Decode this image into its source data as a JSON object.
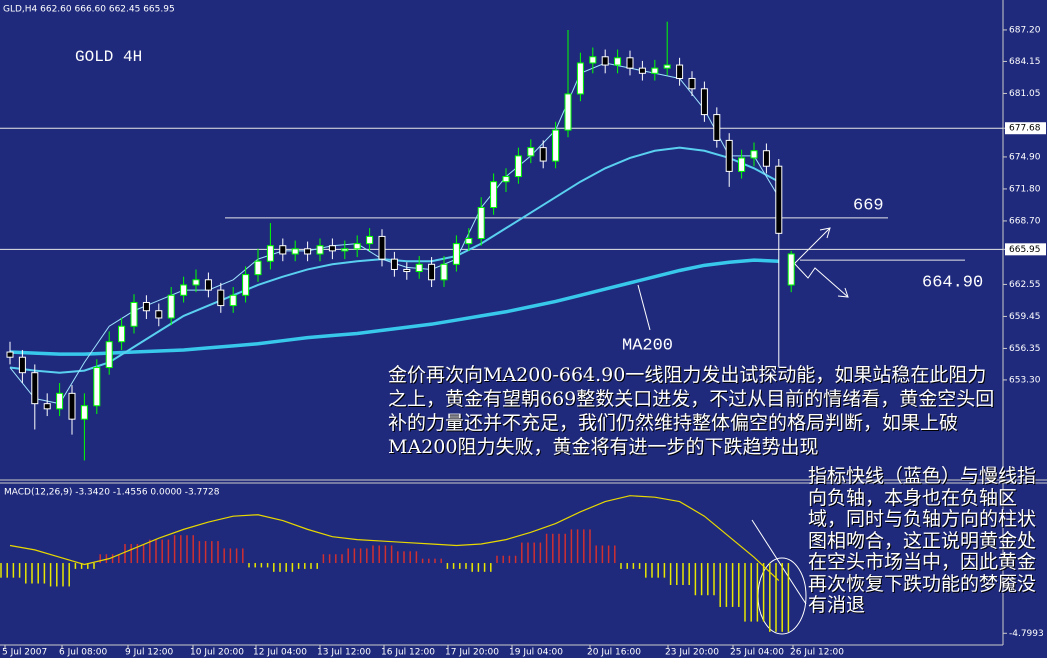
{
  "header": "GLD,H4  662.60 666.60 662.45 665.95",
  "time_labels": [
    "5 Jul 2007",
    "6 Jul 08:00",
    "9 Jul 12:00",
    "10 Jul 20:00",
    "12 Jul 04:00",
    "13 Jul 12:00",
    "16 Jul 12:00",
    "17 Jul 20:00",
    "19 Jul 04:00",
    "20 Jul 16:00",
    "23 Jul 20:00",
    "25 Jul 04:00",
    "26 Jul 12:00"
  ],
  "notes": [
    "金价再次向MA200-664.90一线阻力发出试探动能，如果站稳在此阻力之上，黄金有望朝669整数关口进发，不过从目前的情绪看，黄金空头回补的力量还并不充足，我们仍然维持整体偏空的格局判断，如果上破MA200阻力失败，黄金将有进一步的下跌趋势出现",
    "指标快线（蓝色）与慢线指向负轴，本身也在负轴区域，同时与负轴方向的柱状图相吻合，这正说明黄金处在空头市场当中，因此黄金再次恢复下跌功能的梦魇没有消退"
  ],
  "chart_data": [
    {
      "type": "candlestick",
      "title": "GOLD 4H",
      "ylim": [
        643.8,
        690.1
      ],
      "yticks": [
        {
          "value": 687.2,
          "label": "687.20"
        },
        {
          "value": 684.15,
          "label": "684.15"
        },
        {
          "value": 681.05,
          "label": "681.05"
        },
        {
          "value": 677.68,
          "label": "677.68"
        },
        {
          "value": 674.9,
          "label": "674.90"
        },
        {
          "value": 671.8,
          "label": "671.80"
        },
        {
          "value": 668.7,
          "label": "668.70"
        },
        {
          "value": 665.95,
          "label": "665.95"
        },
        {
          "value": 662.55,
          "label": "662.55"
        },
        {
          "value": 659.45,
          "label": "659.45"
        },
        {
          "value": 656.35,
          "label": "656.35"
        },
        {
          "value": 653.3,
          "label": "653.30"
        }
      ],
      "reference_lines": [
        677.68,
        665.95
      ],
      "levels": [
        {
          "value": 669,
          "label": "669"
        },
        {
          "value": 664.9,
          "label": "664.90"
        }
      ],
      "ma_label": "MA200",
      "up_color": "#00ff00",
      "down_color": "#ffffff",
      "ohlc": [
        [
          656.0,
          657.0,
          654.8,
          655.5
        ],
        [
          655.5,
          656.2,
          653.0,
          654.0
        ],
        [
          654.0,
          654.8,
          648.5,
          651.0
        ],
        [
          651.0,
          652.0,
          649.8,
          650.5
        ],
        [
          650.5,
          653.0,
          649.8,
          652.0
        ],
        [
          652.0,
          652.8,
          648.0,
          649.5
        ],
        [
          649.5,
          652.0,
          645.5,
          650.8
        ],
        [
          650.8,
          655.3,
          650.0,
          654.5
        ],
        [
          654.5,
          658.0,
          653.8,
          657.0
        ],
        [
          657.0,
          659.3,
          656.2,
          658.5
        ],
        [
          658.5,
          661.6,
          657.8,
          660.8
        ],
        [
          660.8,
          661.5,
          659.2,
          660.0
        ],
        [
          660.0,
          660.7,
          658.5,
          659.3
        ],
        [
          659.3,
          662.3,
          658.6,
          661.5
        ],
        [
          661.5,
          663.3,
          660.8,
          662.5
        ],
        [
          662.5,
          664.0,
          661.8,
          663.0
        ],
        [
          663.0,
          663.7,
          661.3,
          662.0
        ],
        [
          662.0,
          662.7,
          659.8,
          660.5
        ],
        [
          660.5,
          662.3,
          659.8,
          661.5
        ],
        [
          661.5,
          664.3,
          660.8,
          663.5
        ],
        [
          663.5,
          666.0,
          662.8,
          664.8
        ],
        [
          664.8,
          668.5,
          664.0,
          666.3
        ],
        [
          666.3,
          667.0,
          664.8,
          665.5
        ],
        [
          665.5,
          666.8,
          664.8,
          666.0
        ],
        [
          666.0,
          666.7,
          664.8,
          665.5
        ],
        [
          665.5,
          667.0,
          664.8,
          666.3
        ],
        [
          666.3,
          667.0,
          665.0,
          665.8
        ],
        [
          665.8,
          666.8,
          665.0,
          666.0
        ],
        [
          666.0,
          667.3,
          665.2,
          666.5
        ],
        [
          666.5,
          668.0,
          665.8,
          667.2
        ],
        [
          667.2,
          667.9,
          664.3,
          665.0
        ],
        [
          665.0,
          665.7,
          663.3,
          664.0
        ],
        [
          664.0,
          664.7,
          663.0,
          663.8
        ],
        [
          663.8,
          665.3,
          663.1,
          664.5
        ],
        [
          664.5,
          665.2,
          662.3,
          663.0
        ],
        [
          663.0,
          665.3,
          662.3,
          664.5
        ],
        [
          664.5,
          667.3,
          663.8,
          666.5
        ],
        [
          666.5,
          668.0,
          665.8,
          667.0
        ],
        [
          667.0,
          671.0,
          666.3,
          670.0
        ],
        [
          670.0,
          673.3,
          669.3,
          672.5
        ],
        [
          672.5,
          673.8,
          671.5,
          673.0
        ],
        [
          673.0,
          675.8,
          672.3,
          675.0
        ],
        [
          675.0,
          676.6,
          674.3,
          675.8
        ],
        [
          675.8,
          676.5,
          673.8,
          674.5
        ],
        [
          674.5,
          678.3,
          673.8,
          677.5
        ],
        [
          677.5,
          687.2,
          676.8,
          681.0
        ],
        [
          681.0,
          685.0,
          680.3,
          684.0
        ],
        [
          684.0,
          685.5,
          683.0,
          684.6
        ],
        [
          684.6,
          685.3,
          683.0,
          683.8
        ],
        [
          683.8,
          685.3,
          683.0,
          684.5
        ],
        [
          684.5,
          685.2,
          682.8,
          683.5
        ],
        [
          683.5,
          684.2,
          682.3,
          683.0
        ],
        [
          683.0,
          684.3,
          682.3,
          683.5
        ],
        [
          683.5,
          688.0,
          682.8,
          683.8
        ],
        [
          683.8,
          684.5,
          681.8,
          682.5
        ],
        [
          682.5,
          683.2,
          680.8,
          681.5
        ],
        [
          681.5,
          682.2,
          678.3,
          679.0
        ],
        [
          679.0,
          679.7,
          675.8,
          676.5
        ],
        [
          676.5,
          677.2,
          672.0,
          673.5
        ],
        [
          673.5,
          675.6,
          672.8,
          674.8
        ],
        [
          674.8,
          676.3,
          674.0,
          675.5
        ],
        [
          675.5,
          676.2,
          673.3,
          674.0
        ],
        [
          674.0,
          674.7,
          654.5,
          667.5
        ],
        [
          662.5,
          665.8,
          661.8,
          665.5
        ]
      ],
      "series": [
        {
          "color": "#38c8ec",
          "width": 3.5,
          "values": [
            656.0,
            655.9,
            655.8,
            655.8,
            655.9,
            656.0,
            656.1,
            656.2,
            656.4,
            656.6,
            656.8,
            657.1,
            657.4,
            657.6,
            657.8,
            658.1,
            658.4,
            658.7,
            659.1,
            659.5,
            659.9,
            660.4,
            660.9,
            661.5,
            662.1,
            662.7,
            663.3,
            663.9,
            664.4,
            664.7,
            664.9,
            664.8
          ]
        },
        {
          "color": "#5ad0f0",
          "width": 2,
          "values": [
            654.5,
            654.2,
            654.0,
            654.2,
            655.0,
            656.5,
            658.0,
            659.5,
            660.5,
            661.5,
            662.5,
            663.3,
            664.0,
            664.5,
            664.8,
            665.0,
            664.8,
            664.8,
            665.3,
            666.5,
            668.0,
            669.5,
            671.0,
            672.5,
            673.8,
            674.8,
            675.5,
            675.8,
            675.5,
            674.8,
            673.8,
            672.5
          ]
        },
        {
          "color": "#9fe4ff",
          "width": 1,
          "values": [
            654.5,
            651.5,
            651.0,
            655.0,
            658.5,
            660.0,
            661.0,
            662.0,
            662.0,
            663.0,
            665.0,
            665.8,
            665.8,
            666.3,
            666.5,
            665.0,
            664.2,
            664.0,
            665.0,
            670.0,
            673.0,
            675.0,
            677.5,
            683.0,
            684.0,
            683.5,
            683.0,
            682.5,
            679.5,
            675.0,
            675.0,
            671.0
          ]
        }
      ]
    },
    {
      "type": "macd",
      "title": "MACD(12,26,9) -3.3420 -1.4556 0.0000 -3.7728",
      "ylim": [
        -5.6,
        5.4
      ],
      "yticks": [
        -4.7993
      ],
      "up_color": "#d03030",
      "down_color": "#e8e800",
      "signal_color": "#e8d800",
      "histogram": [
        -1.0,
        -1.4,
        -1.6,
        -0.4,
        0.6,
        1.3,
        1.6,
        1.9,
        1.5,
        1.0,
        -0.3,
        -0.6,
        -0.4,
        0.6,
        1.0,
        1.2,
        0.8,
        0.3,
        -0.4,
        -0.6,
        0.5,
        1.4,
        2.0,
        2.3,
        1.2,
        -0.4,
        -1.0,
        -1.5,
        -2.2,
        -3.0,
        -4.0,
        -4.7
      ],
      "signal": [
        1.2,
        0.9,
        0.4,
        -0.1,
        0.3,
        1.0,
        1.7,
        2.3,
        2.8,
        3.2,
        3.3,
        2.9,
        2.3,
        1.8,
        1.6,
        1.5,
        1.4,
        1.3,
        1.2,
        1.3,
        1.6,
        2.1,
        2.7,
        3.5,
        4.2,
        4.6,
        4.5,
        4.2,
        3.2,
        1.8,
        0.4,
        -1.2
      ]
    }
  ]
}
